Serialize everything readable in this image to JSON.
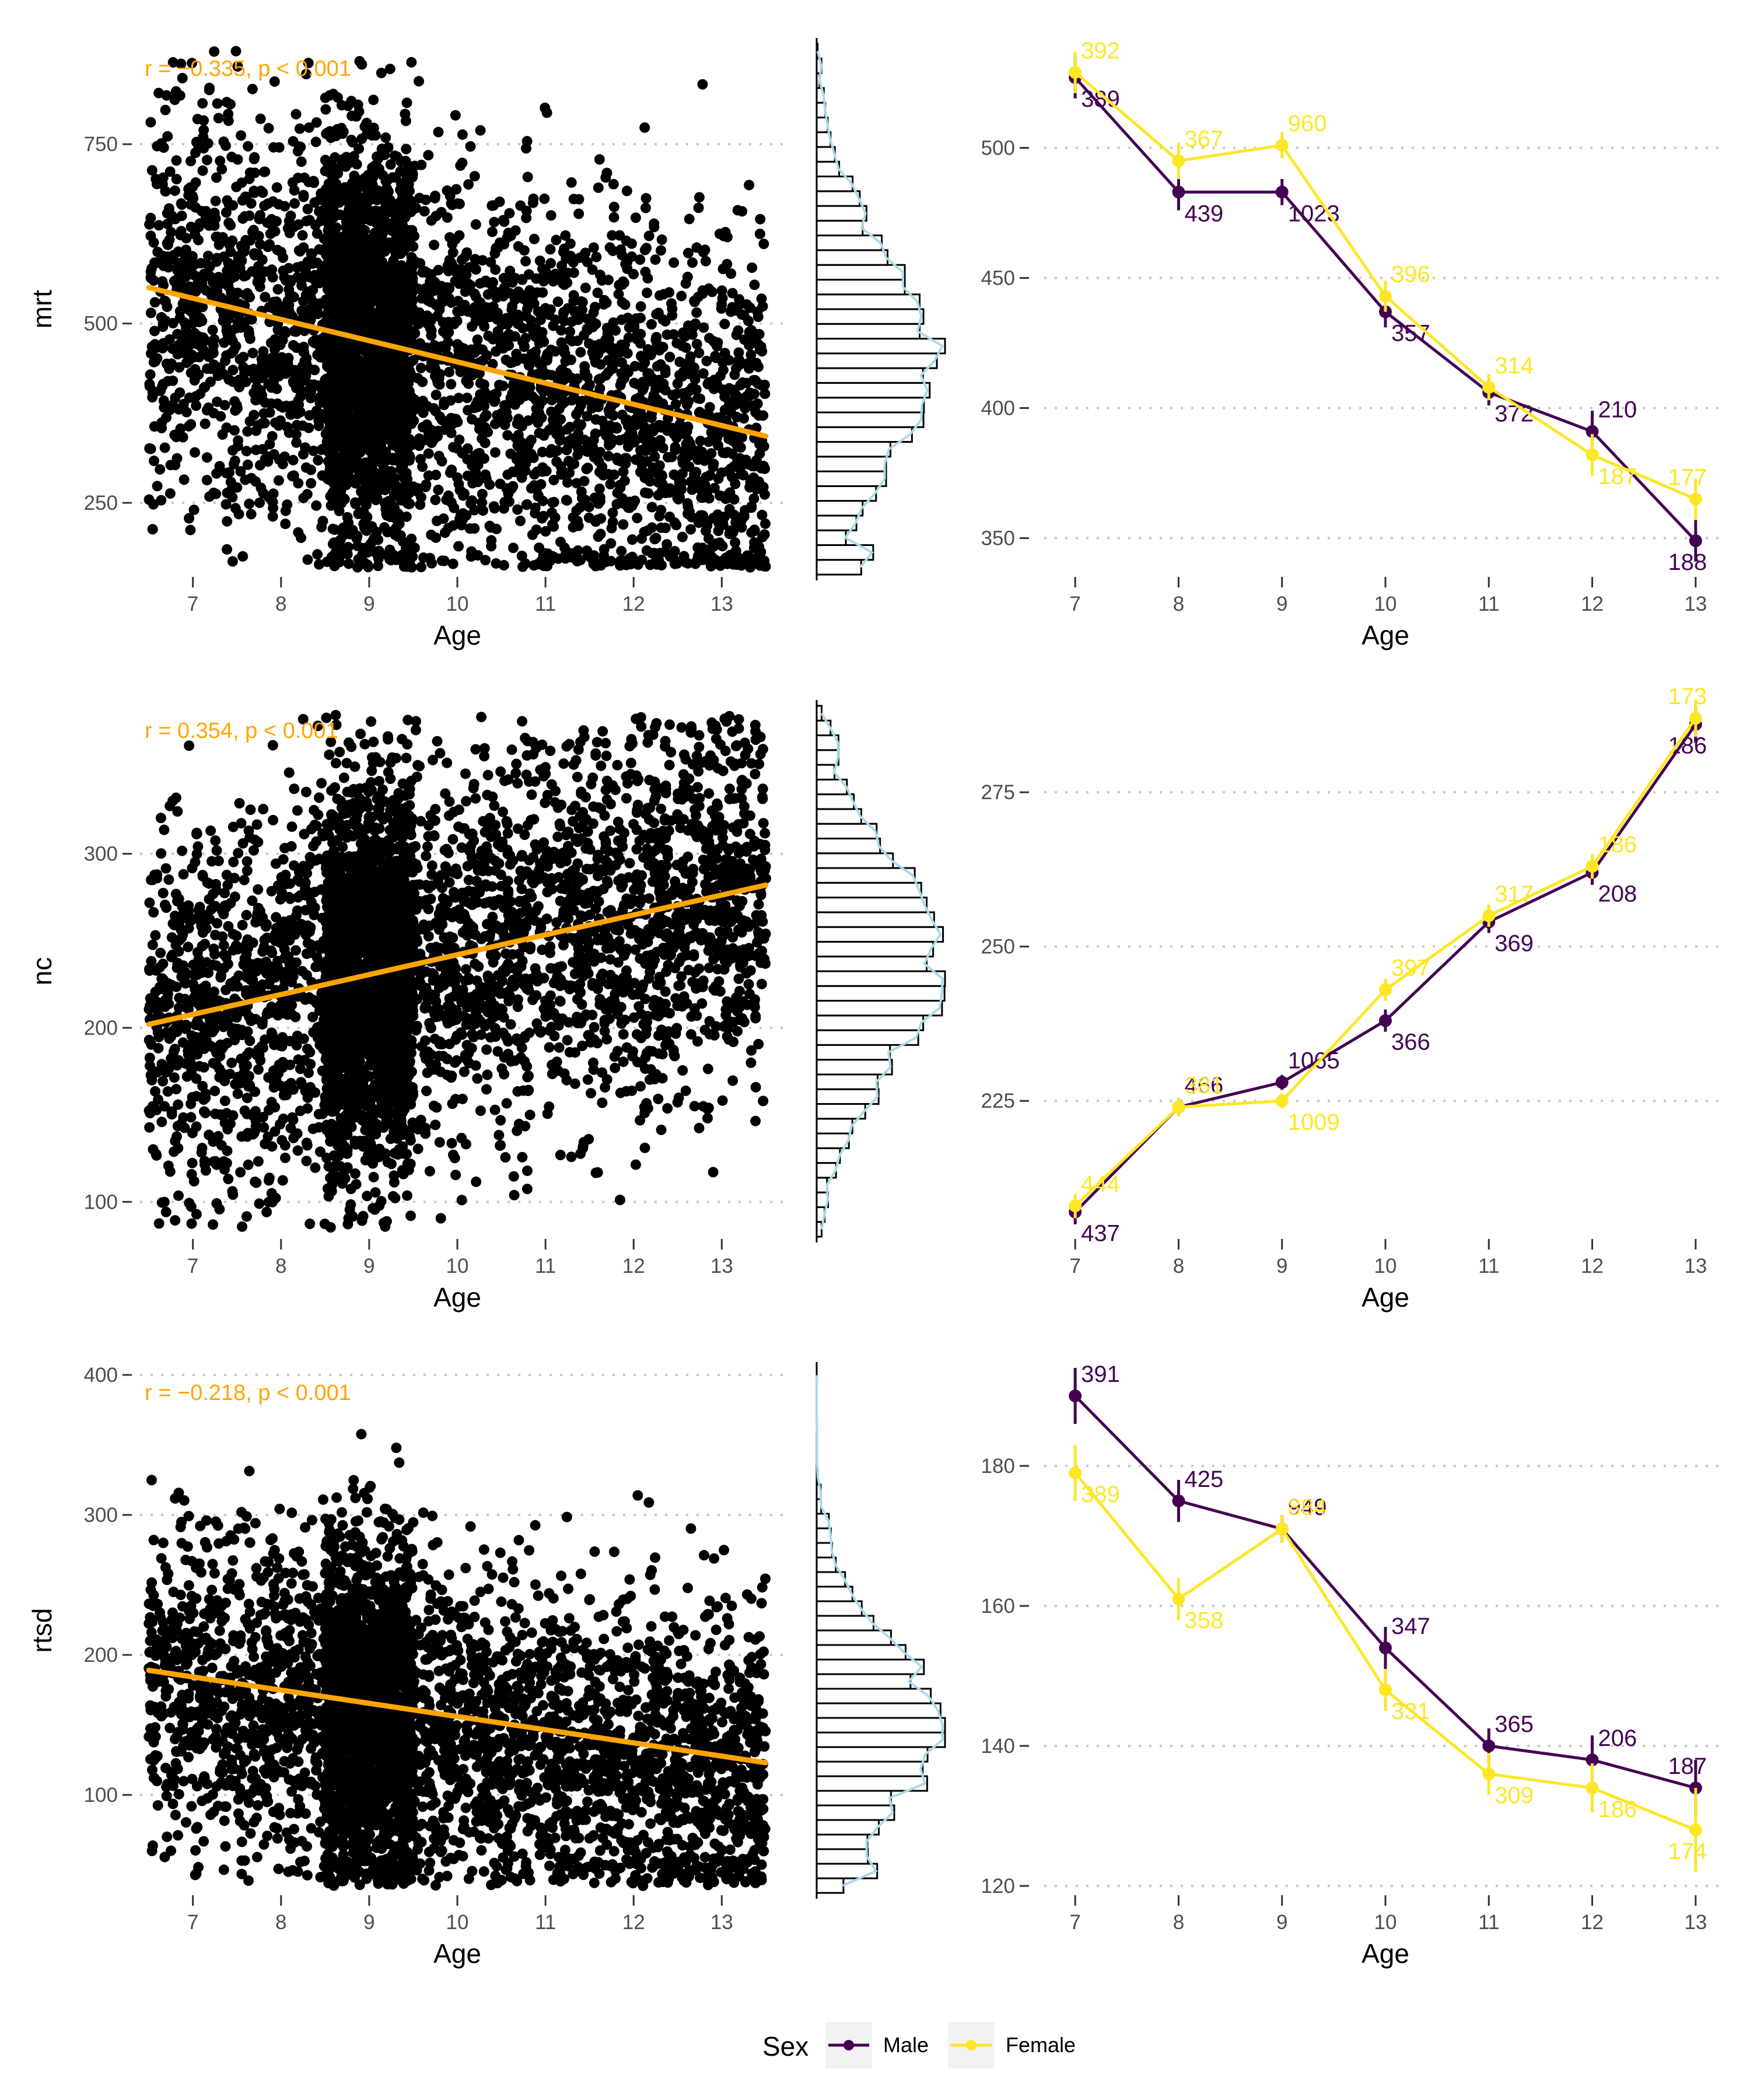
{
  "colors": {
    "male": "#440154",
    "female": "#FDE725",
    "fit": "#FFA500",
    "density": "#ADD8E6",
    "grid": "#C8C8C8",
    "point": "#000000"
  },
  "legend": {
    "title": "Sex",
    "items": [
      {
        "label": "Male",
        "color": "#440154"
      },
      {
        "label": "Female",
        "color": "#FDE725"
      }
    ]
  },
  "chart_data": [
    {
      "type": "scatter",
      "panel": "mrt-scatter",
      "xlabel": "Age",
      "ylabel": "mrt",
      "x_ticks": [
        7,
        8,
        9,
        10,
        11,
        12,
        13
      ],
      "y_ticks": [
        250,
        500,
        750
      ],
      "xlim": [
        6.4,
        13.6
      ],
      "ylim": [
        150,
        890
      ],
      "annotation": "r = −0.335, p < 0.001",
      "fit": {
        "x": [
          6.5,
          13.5
        ],
        "y": [
          550,
          343
        ]
      },
      "cloud": {
        "n": 4500,
        "center_y": 450,
        "sd_y": 140,
        "min_y": 160,
        "max_y": 880,
        "slope_per_year": -29.6
      }
    },
    {
      "type": "line",
      "panel": "mrt-means",
      "xlabel": "Age",
      "x": [
        7,
        8,
        9,
        10,
        11,
        12,
        13
      ],
      "y_ticks": [
        350,
        400,
        450,
        500
      ],
      "ylim": [
        336,
        540
      ],
      "series": [
        {
          "name": "Male",
          "y": [
            527,
            483,
            483,
            437,
            406,
            391,
            349
          ],
          "err": [
            8,
            7,
            5,
            6,
            5,
            8,
            8
          ],
          "n": [
            "389",
            "439",
            "1023",
            "357",
            "372",
            "210",
            "188"
          ]
        },
        {
          "name": "Female",
          "y": [
            529,
            495,
            501,
            443,
            408,
            382,
            365
          ],
          "err": [
            8,
            7,
            5,
            6,
            5,
            8,
            8
          ],
          "n": [
            "392",
            "367",
            "960",
            "396",
            "314",
            "187",
            "177"
          ]
        }
      ]
    },
    {
      "type": "scatter",
      "panel": "nc-scatter",
      "xlabel": "Age",
      "ylabel": "nc",
      "x_ticks": [
        7,
        8,
        9,
        10,
        11,
        12,
        13
      ],
      "y_ticks": [
        100,
        200,
        300
      ],
      "xlim": [
        6.4,
        13.6
      ],
      "ylim": [
        80,
        385
      ],
      "annotation": "r = 0.354, p < 0.001",
      "fit": {
        "x": [
          6.5,
          13.5
        ],
        "y": [
          202,
          282
        ]
      },
      "cloud": {
        "n": 4500,
        "center_y": 235,
        "sd_y": 55,
        "min_y": 85,
        "max_y": 380,
        "slope_per_year": 11.4
      }
    },
    {
      "type": "line",
      "panel": "nc-means",
      "xlabel": "Age",
      "x": [
        7,
        8,
        9,
        10,
        11,
        12,
        13
      ],
      "y_ticks": [
        225,
        250,
        275
      ],
      "ylim": [
        203,
        289
      ],
      "series": [
        {
          "name": "Male",
          "y": [
            207,
            224,
            228,
            238,
            254,
            262,
            286
          ],
          "err": [
            2,
            1.5,
            1.2,
            1.8,
            1.8,
            2,
            3
          ],
          "n": [
            "437",
            "466",
            "1065",
            "366",
            "369",
            "208",
            "186"
          ]
        },
        {
          "name": "Female",
          "y": [
            208,
            224,
            225,
            243,
            255,
            263,
            287
          ],
          "err": [
            2,
            1.5,
            1.2,
            1.8,
            1.8,
            2,
            3
          ],
          "n": [
            "444",
            "381",
            "1009",
            "397",
            "317",
            "186",
            "173"
          ]
        }
      ]
    },
    {
      "type": "scatter",
      "panel": "rtsd-scatter",
      "xlabel": "Age",
      "ylabel": "rtsd",
      "x_ticks": [
        7,
        8,
        9,
        10,
        11,
        12,
        13
      ],
      "y_ticks": [
        100,
        200,
        300,
        400
      ],
      "xlim": [
        6.4,
        13.6
      ],
      "ylim": [
        30,
        405
      ],
      "annotation": "r = −0.218, p < 0.001",
      "fit": {
        "x": [
          6.5,
          13.5
        ],
        "y": [
          189,
          123
        ]
      },
      "cloud": {
        "n": 4500,
        "center_y": 150,
        "sd_y": 60,
        "min_y": 35,
        "max_y": 395,
        "slope_per_year": -9.4
      }
    },
    {
      "type": "line",
      "panel": "rtsd-means",
      "xlabel": "Age",
      "x": [
        7,
        8,
        9,
        10,
        11,
        12,
        13
      ],
      "y_ticks": [
        120,
        140,
        160,
        180
      ],
      "ylim": [
        119,
        194
      ],
      "series": [
        {
          "name": "Male",
          "y": [
            190,
            175,
            171,
            154,
            140,
            138,
            134
          ],
          "err": [
            4,
            3,
            2,
            3,
            2.5,
            3.5,
            4
          ],
          "n": [
            "391",
            "425",
            "949",
            "347",
            "365",
            "206",
            "187"
          ]
        },
        {
          "name": "Female",
          "y": [
            179,
            161,
            171,
            148,
            136,
            134,
            128
          ],
          "err": [
            4,
            3,
            2,
            3,
            3,
            3.5,
            6
          ],
          "n": [
            "389",
            "358",
            "884",
            "331",
            "309",
            "186",
            "174"
          ]
        }
      ]
    }
  ]
}
